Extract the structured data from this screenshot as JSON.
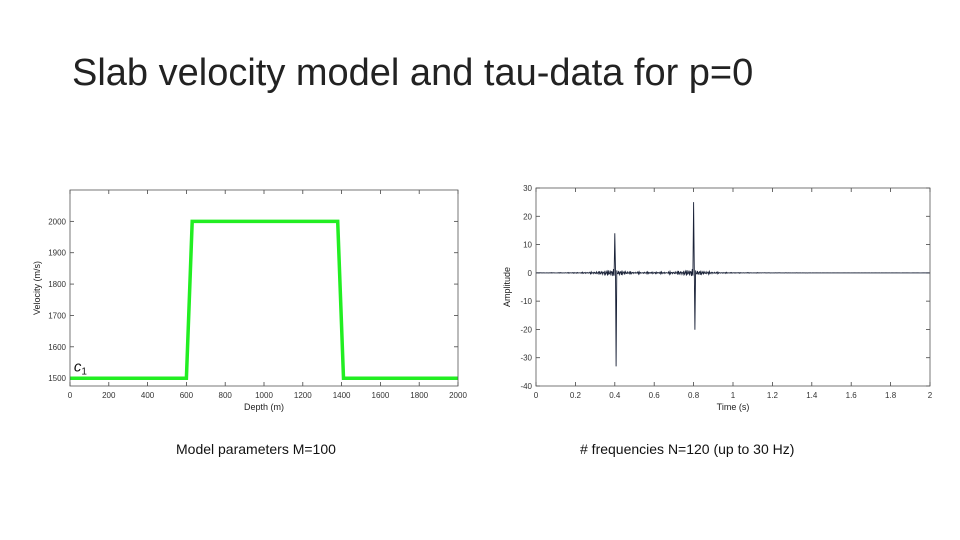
{
  "slide": {
    "title": "Slab velocity model and tau-data for p=0",
    "caption_left": "Model parameters M=100",
    "caption_right": "# frequencies N=120 (up to 30 Hz)"
  },
  "chart_data": [
    {
      "type": "line",
      "title": "",
      "xlabel": "Depth (m)",
      "ylabel": "Velocity (m/s)",
      "xlim": [
        0,
        2000
      ],
      "ylim": [
        1475,
        2100
      ],
      "xticks": [
        0,
        200,
        400,
        600,
        800,
        1000,
        1200,
        1400,
        1600,
        1800,
        2000
      ],
      "yticks": [
        1500,
        1600,
        1700,
        1800,
        1900,
        2000
      ],
      "annotation": "c1",
      "series": [
        {
          "color": "#22ee22",
          "x": [
            0,
            600,
            630,
            1380,
            1410,
            2000
          ],
          "y": [
            1500,
            1500,
            2000,
            2000,
            1500,
            1500
          ]
        }
      ]
    },
    {
      "type": "line",
      "title": "",
      "xlabel": "Time (s)",
      "ylabel": "Amplitude",
      "xlim": [
        0,
        2
      ],
      "ylim": [
        -40,
        30
      ],
      "xticks": [
        0,
        0.2,
        0.4,
        0.6,
        0.8,
        1,
        1.2,
        1.4,
        1.6,
        1.8,
        2
      ],
      "yticks": [
        -40,
        -30,
        -20,
        -10,
        0,
        10,
        20,
        30
      ],
      "series": [
        {
          "color": "#1a2238",
          "description_of_events": "two ringing pulses",
          "events": [
            {
              "t": 0.4,
              "max": 14,
              "min": -32
            },
            {
              "t": 0.8,
              "max": 25,
              "min": -19
            }
          ]
        }
      ]
    }
  ]
}
